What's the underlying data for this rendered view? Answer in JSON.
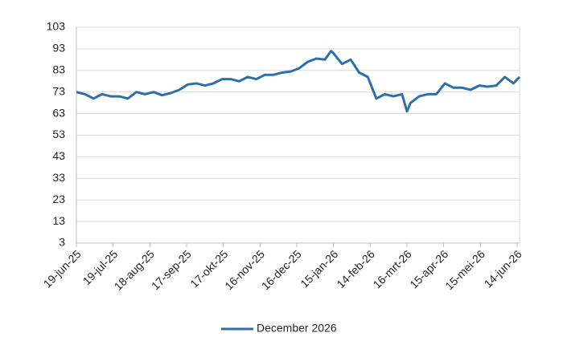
{
  "chart_data": {
    "type": "line",
    "x": [
      "2025-06-19",
      "2025-06-26",
      "2025-07-03",
      "2025-07-10",
      "2025-07-17",
      "2025-07-24",
      "2025-07-31",
      "2025-08-07",
      "2025-08-14",
      "2025-08-21",
      "2025-08-28",
      "2025-09-04",
      "2025-09-11",
      "2025-09-18",
      "2025-09-25",
      "2025-10-02",
      "2025-10-09",
      "2025-10-16",
      "2025-10-23",
      "2025-10-30",
      "2025-11-06",
      "2025-11-13",
      "2025-11-20",
      "2025-11-27",
      "2025-12-04",
      "2025-12-11",
      "2025-12-18",
      "2025-12-25",
      "2026-01-01",
      "2026-01-08",
      "2026-01-13",
      "2026-01-15",
      "2026-01-22",
      "2026-01-29",
      "2026-02-05",
      "2026-02-12",
      "2026-02-19",
      "2026-02-26",
      "2026-03-05",
      "2026-03-12",
      "2026-03-16",
      "2026-03-19",
      "2026-03-26",
      "2026-04-02",
      "2026-04-09",
      "2026-04-16",
      "2026-04-23",
      "2026-04-30",
      "2026-05-07",
      "2026-05-14",
      "2026-05-21",
      "2026-05-28",
      "2026-06-04",
      "2026-06-11",
      "2026-06-16"
    ],
    "series": [
      {
        "name": "December 2026",
        "color": "#2e6fa8",
        "values": [
          73,
          72,
          70,
          72,
          71,
          71,
          70,
          73,
          72,
          73,
          71.5,
          72.5,
          74,
          76.5,
          77,
          76,
          77,
          79,
          79,
          78,
          80,
          79,
          81,
          81,
          82,
          82.5,
          84,
          87,
          88.5,
          88,
          92,
          91,
          86,
          88,
          82,
          80,
          70,
          72,
          71,
          72,
          64,
          68,
          71,
          72,
          72,
          77,
          75,
          75,
          74,
          76,
          75.5,
          76,
          80,
          77,
          80
        ]
      }
    ],
    "xlim": [
      "2025-06-19",
      "2026-06-16"
    ],
    "xticks": [
      {
        "value": "2025-06-19",
        "label": "19-jun-25"
      },
      {
        "value": "2025-07-19",
        "label": "19-jul-25"
      },
      {
        "value": "2025-08-18",
        "label": "18-aug-25"
      },
      {
        "value": "2025-09-17",
        "label": "17-sep-25"
      },
      {
        "value": "2025-10-17",
        "label": "17-okt-25"
      },
      {
        "value": "2025-11-16",
        "label": "16-nov-25"
      },
      {
        "value": "2025-12-16",
        "label": "16-dec-25"
      },
      {
        "value": "2026-01-15",
        "label": "15-jan-26"
      },
      {
        "value": "2026-02-14",
        "label": "14-feb-26"
      },
      {
        "value": "2026-03-16",
        "label": "16-mrt-26"
      },
      {
        "value": "2026-04-15",
        "label": "15-apr-26"
      },
      {
        "value": "2026-05-15",
        "label": "15-mei-26"
      },
      {
        "value": "2026-06-14",
        "label": "14-jun-26"
      }
    ],
    "ylim": [
      3,
      103
    ],
    "yticks": [
      3,
      13,
      23,
      33,
      43,
      53,
      63,
      73,
      83,
      93,
      103
    ],
    "grid": true,
    "legend": "bottom"
  }
}
